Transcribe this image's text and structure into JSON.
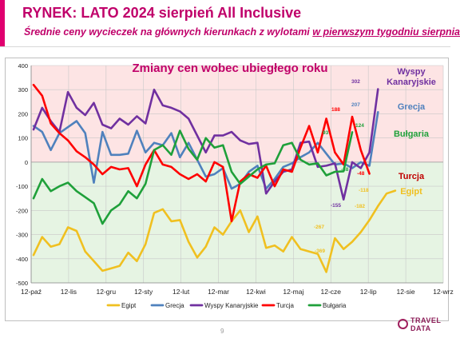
{
  "header": {
    "title": "RYNEK: LATO 2024 sierpień All Inclusive",
    "subtitle_plain": "Średnie ceny wycieczek na głównych kierunkach z wylotami ",
    "subtitle_underlined": "w pierwszym tygodniu sierpnia"
  },
  "page_number": "9",
  "logo": {
    "line1": "TRAVEL",
    "line2": "DATA"
  },
  "colors": {
    "title": "#c0006a",
    "positive_zone": "#fde4e4",
    "negative_zone": "#e6f4e3",
    "Egipt": "#f0c020",
    "Grecja": "#4f81bd",
    "Wyspy Kanaryjskie": "#7030a0",
    "Turcja": "#ff0000",
    "Bulgaria": "#1fa03a",
    "Grecja_label": "#4f81bd",
    "Bulgaria_label": "#1fa03a",
    "Turcja_label": "#c00000",
    "Egipt_label": "#f0c020",
    "Wyspy_label": "#7030a0"
  },
  "chart_data": {
    "type": "line",
    "title": "Zmiany cen wobec ubiegłego roku",
    "xlabel": "",
    "ylabel": "",
    "ylim": [
      -500,
      400
    ],
    "yticks": [
      400,
      300,
      200,
      100,
      0,
      -100,
      -200,
      -300,
      -400,
      -500
    ],
    "xticks": [
      "12-paź",
      "12-lis",
      "12-gru",
      "12-sty",
      "12-lut",
      "12-mar",
      "12-kwi",
      "12-maj",
      "12-cze",
      "12-lip",
      "12-sie",
      "12-wrz"
    ],
    "grid": true,
    "legend_position": "bottom",
    "series": [
      {
        "name": "Egipt",
        "values": [
          -385,
          -310,
          -350,
          -340,
          -270,
          -285,
          -370,
          -410,
          -450,
          -440,
          -430,
          -375,
          -410,
          -340,
          -210,
          -195,
          -245,
          -240,
          -330,
          -395,
          -350,
          -270,
          -300,
          -245,
          -200,
          -290,
          -225,
          -355,
          -345,
          -370,
          -310,
          -360,
          -370,
          -380,
          -455,
          -315,
          -360,
          -330,
          -290,
          -240,
          -182,
          -130,
          -118
        ]
      },
      {
        "name": "Grecja",
        "values": [
          150,
          125,
          50,
          120,
          145,
          170,
          120,
          -85,
          125,
          30,
          30,
          35,
          130,
          40,
          80,
          70,
          120,
          20,
          80,
          10,
          -60,
          -50,
          -25,
          -110,
          -90,
          -40,
          -15,
          -110,
          -70,
          -20,
          -5,
          20,
          40,
          80,
          35,
          -10,
          -5,
          -25,
          0,
          -15,
          207
        ]
      },
      {
        "name": "Wyspy Kanaryjskie",
        "values": [
          135,
          225,
          170,
          125,
          290,
          225,
          195,
          245,
          155,
          140,
          180,
          155,
          190,
          160,
          300,
          235,
          225,
          210,
          180,
          110,
          40,
          110,
          110,
          125,
          90,
          75,
          80,
          -130,
          -80,
          -40,
          -30,
          80,
          85,
          -20,
          -15,
          -5,
          -155,
          0,
          -25,
          40,
          302
        ]
      },
      {
        "name": "Turcja",
        "values": [
          320,
          275,
          160,
          120,
          90,
          45,
          20,
          -10,
          -50,
          -20,
          -30,
          -25,
          -100,
          -10,
          50,
          -10,
          -20,
          -50,
          -70,
          -50,
          -80,
          0,
          -20,
          -245,
          -80,
          -50,
          -65,
          -15,
          -100,
          -30,
          -40,
          60,
          150,
          40,
          180,
          40,
          -10,
          188,
          50,
          -48
        ]
      },
      {
        "name": "Bułgaria",
        "values": [
          -150,
          -70,
          -120,
          -100,
          -85,
          -120,
          -145,
          -170,
          -255,
          -200,
          -175,
          -120,
          -150,
          -90,
          50,
          70,
          30,
          130,
          55,
          10,
          100,
          60,
          70,
          -40,
          -90,
          -60,
          -30,
          -10,
          -5,
          70,
          80,
          10,
          -10,
          -5,
          -55,
          -40,
          -38,
          124
        ]
      }
    ],
    "annotations": [
      {
        "series": "Wyspy Kanaryjskie",
        "text": "302"
      },
      {
        "series": "Grecja",
        "text": "207"
      },
      {
        "series": "Turcja",
        "text": "188"
      },
      {
        "series": "Bułgaria",
        "text": "124"
      },
      {
        "series": "Bułgaria",
        "text": "93"
      },
      {
        "series": "Bułgaria",
        "text": "-38"
      },
      {
        "series": "Turcja",
        "text": "-48"
      },
      {
        "series": "Wyspy Kanaryjskie",
        "text": "-155"
      },
      {
        "series": "Egipt",
        "text": "-118"
      },
      {
        "series": "Egipt",
        "text": "-182"
      },
      {
        "series": "Egipt",
        "text": "-267"
      },
      {
        "series": "Egipt",
        "text": "-369"
      }
    ],
    "series_labels": [
      {
        "series": "Wyspy Kanaryjskie",
        "line1": "Wyspy",
        "line2": "Kanaryjskie"
      },
      {
        "series": "Grecja",
        "line1": "Grecja",
        "line2": ""
      },
      {
        "series": "Bułgaria",
        "line1": "Bułgaria",
        "line2": ""
      },
      {
        "series": "Turcja",
        "line1": "Turcja",
        "line2": ""
      },
      {
        "series": "Egipt",
        "line1": "Egipt",
        "line2": ""
      }
    ]
  }
}
